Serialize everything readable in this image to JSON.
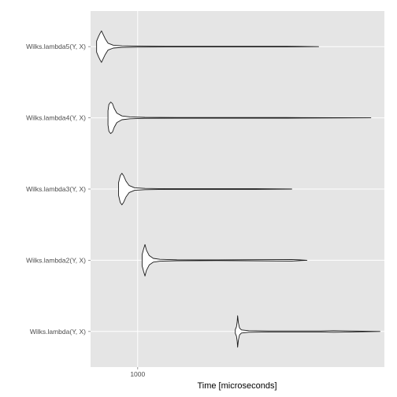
{
  "chart_data": {
    "type": "violin",
    "title": "",
    "xlabel": "Time [microseconds]",
    "ylabel": "",
    "x_scale": "log10",
    "x_ticks": [
      1000
    ],
    "x_tick_labels": [
      "1000"
    ],
    "xlim": [
      730,
      5200
    ],
    "grid": true,
    "legend": "none",
    "colors": {
      "panel": "#e5e5e5",
      "grid": "#ffffff",
      "violin_fill": "#ffffff",
      "violin_stroke": "#1a1a1a"
    },
    "categories": [
      "Wilks.lambda5(Y, X)",
      "Wilks.lambda4(Y, X)",
      "Wilks.lambda3(Y, X)",
      "Wilks.lambda2(Y, X)",
      "Wilks.lambda(Y, X)"
    ],
    "series": [
      {
        "category": "Wilks.lambda5(Y, X)",
        "min": 760,
        "mode": 785,
        "max": 3350,
        "density": [
          [
            760,
            0.35
          ],
          [
            770,
            0.65
          ],
          [
            778,
            0.85
          ],
          [
            785,
            1.0
          ],
          [
            795,
            0.75
          ],
          [
            805,
            0.5
          ],
          [
            820,
            0.22
          ],
          [
            850,
            0.09
          ],
          [
            900,
            0.05
          ],
          [
            1000,
            0.03
          ],
          [
            1200,
            0.02
          ],
          [
            2700,
            0.02
          ],
          [
            3350,
            0
          ]
        ]
      },
      {
        "category": "Wilks.lambda4(Y, X)",
        "min": 820,
        "mode": 835,
        "max": 4750,
        "density": [
          [
            820,
            0.45
          ],
          [
            825,
            0.85
          ],
          [
            835,
            1.0
          ],
          [
            845,
            0.9
          ],
          [
            855,
            0.6
          ],
          [
            870,
            0.3
          ],
          [
            900,
            0.12
          ],
          [
            950,
            0.06
          ],
          [
            1050,
            0.03
          ],
          [
            1300,
            0.02
          ],
          [
            2700,
            0.02
          ],
          [
            4750,
            0
          ]
        ]
      },
      {
        "category": "Wilks.lambda3(Y, X)",
        "min": 880,
        "mode": 905,
        "max": 2800,
        "density": [
          [
            880,
            0.4
          ],
          [
            890,
            0.85
          ],
          [
            900,
            1.0
          ],
          [
            910,
            0.85
          ],
          [
            925,
            0.5
          ],
          [
            945,
            0.22
          ],
          [
            980,
            0.08
          ],
          [
            1050,
            0.04
          ],
          [
            1200,
            0.02
          ],
          [
            2200,
            0.02
          ],
          [
            2800,
            0
          ]
        ]
      },
      {
        "category": "Wilks.lambda2(Y, X)",
        "min": 1030,
        "mode": 1050,
        "max": 3100,
        "density": [
          [
            1030,
            0.35
          ],
          [
            1040,
            0.7
          ],
          [
            1050,
            1.0
          ],
          [
            1060,
            0.65
          ],
          [
            1080,
            0.3
          ],
          [
            1110,
            0.12
          ],
          [
            1160,
            0.06
          ],
          [
            1300,
            0.03
          ],
          [
            1700,
            0.02
          ],
          [
            2800,
            0.05
          ],
          [
            3100,
            0
          ]
        ]
      },
      {
        "category": "Wilks.lambda(Y, X)",
        "min": 1920,
        "mode": 1950,
        "max": 5050,
        "density": [
          [
            1920,
            0.12
          ],
          [
            1935,
            0.3
          ],
          [
            1945,
            0.65
          ],
          [
            1950,
            1.0
          ],
          [
            1960,
            0.55
          ],
          [
            1975,
            0.22
          ],
          [
            2000,
            0.1
          ],
          [
            2100,
            0.05
          ],
          [
            2400,
            0.03
          ],
          [
            3400,
            0.03
          ],
          [
            3700,
            0.05
          ],
          [
            5050,
            0
          ]
        ]
      }
    ]
  }
}
